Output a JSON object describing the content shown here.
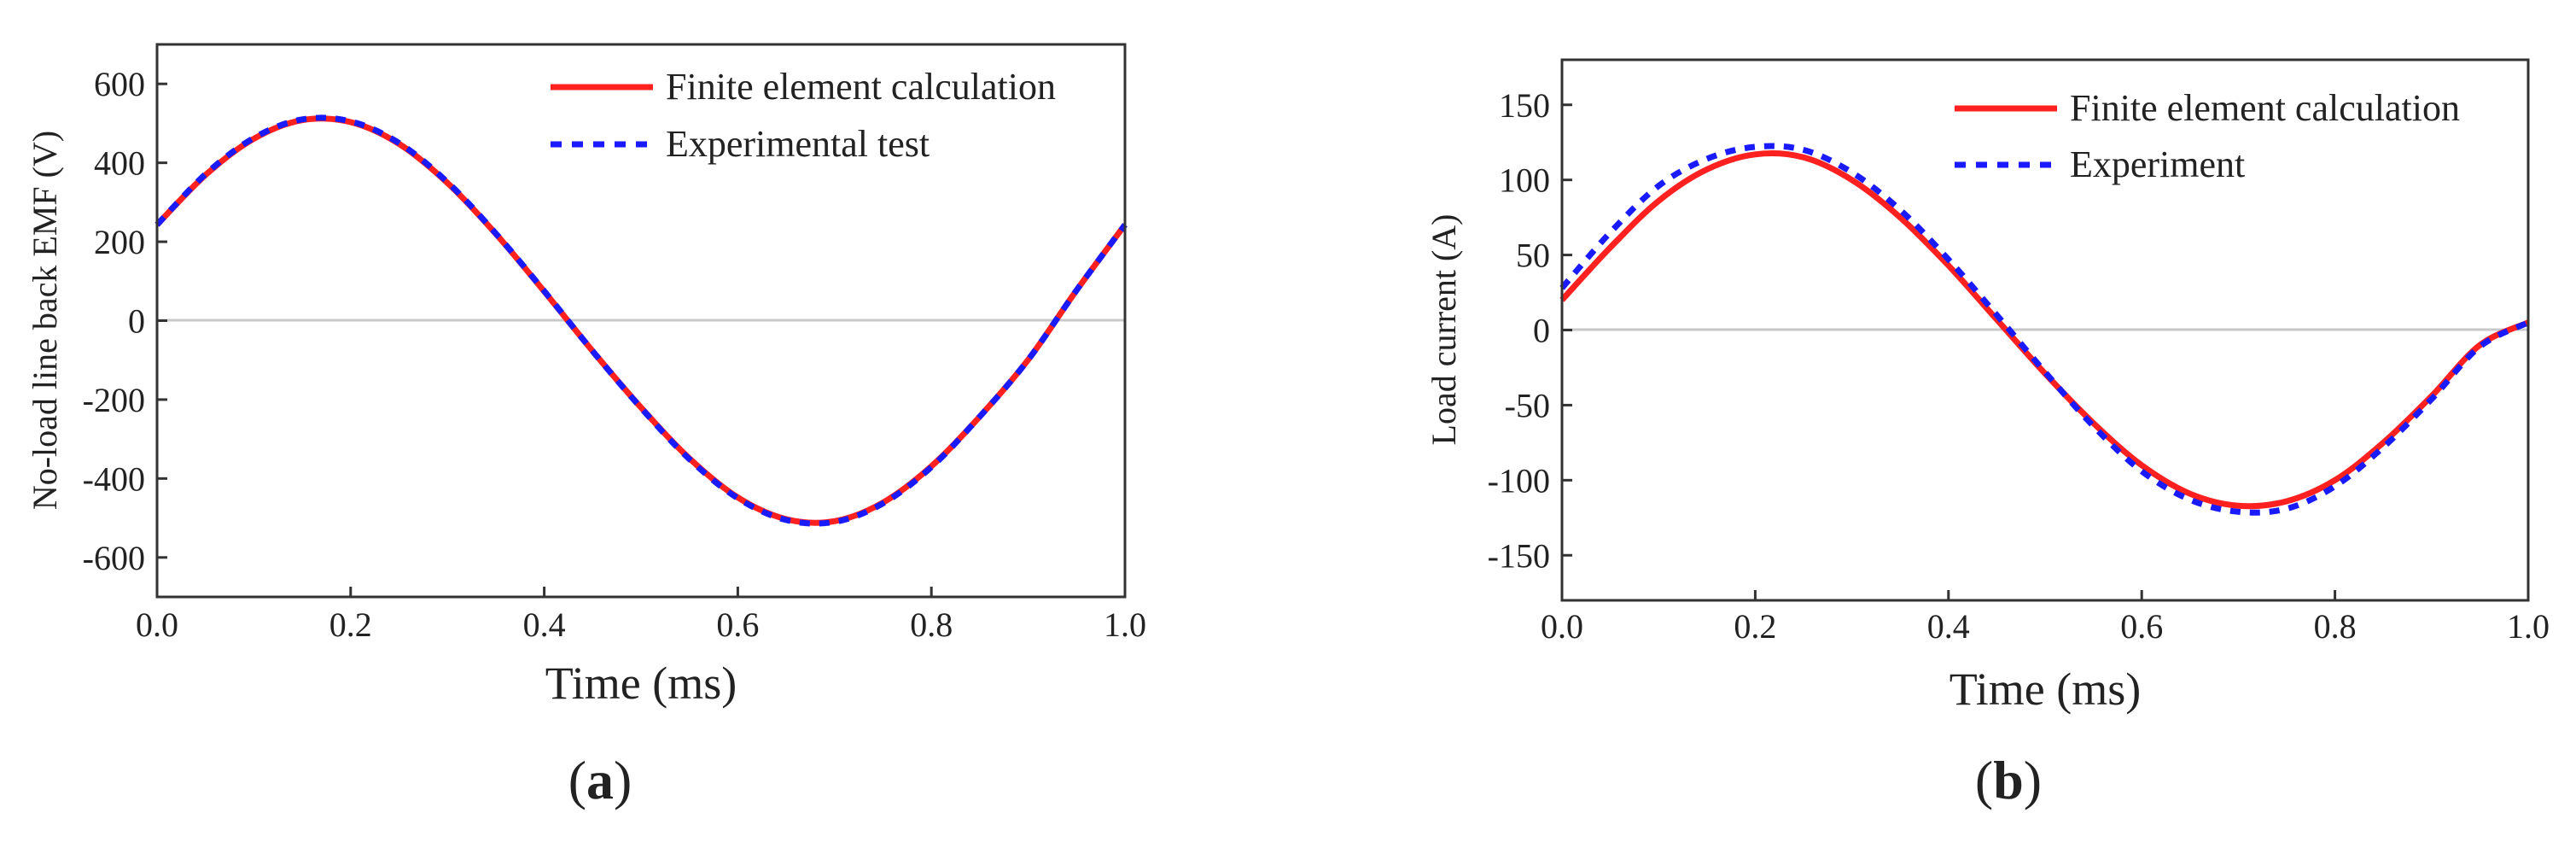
{
  "chart_data": [
    {
      "panel": "a",
      "type": "line",
      "xlabel": "Time (ms)",
      "ylabel": "No-load line back EMF (V)",
      "xlim": [
        0,
        1
      ],
      "ylim": [
        -700,
        700
      ],
      "x_ticks": [
        "0.0",
        "0.2",
        "0.4",
        "0.6",
        "0.8",
        "1.0"
      ],
      "y_ticks": [
        "600",
        "400",
        "200",
        "0",
        "-200",
        "-400",
        "-600"
      ],
      "grid": false,
      "zero_line": true,
      "legend_position": "top-right",
      "x": [
        0,
        0.05,
        0.1,
        0.15,
        0.2,
        0.25,
        0.3,
        0.35,
        0.4,
        0.45,
        0.5,
        0.55,
        0.6,
        0.65,
        0.7,
        0.75,
        0.8,
        0.85,
        0.9,
        0.95,
        1.0
      ],
      "series": [
        {
          "name": "Finite element calculation",
          "color": "#ff2020",
          "style": "solid",
          "values": [
            243,
            369,
            461,
            508,
            503,
            448,
            349,
            220,
            74,
            -77,
            -220,
            -349,
            -448,
            -503,
            -508,
            -461,
            -369,
            -243,
            -99,
            77,
            243
          ]
        },
        {
          "name": "Experimental test",
          "color": "#1a1aff",
          "style": "dotted",
          "values": [
            243,
            371,
            463,
            510,
            505,
            450,
            351,
            221,
            75,
            -77,
            -221,
            -351,
            -450,
            -505,
            -510,
            -463,
            -371,
            -243,
            -99,
            77,
            243
          ]
        }
      ]
    },
    {
      "panel": "b",
      "type": "line",
      "xlabel": "Time (ms)",
      "ylabel": "Load current (A)",
      "xlim": [
        0,
        1
      ],
      "ylim": [
        -180,
        180
      ],
      "x_ticks": [
        "0.0",
        "0.2",
        "0.4",
        "0.6",
        "0.8",
        "1.0"
      ],
      "y_ticks": [
        "150",
        "100",
        "50",
        "0",
        "-50",
        "-100",
        "-150"
      ],
      "grid": false,
      "zero_line": true,
      "legend_position": "top-right",
      "x": [
        0,
        0.05,
        0.1,
        0.15,
        0.2,
        0.25,
        0.3,
        0.35,
        0.4,
        0.45,
        0.5,
        0.55,
        0.6,
        0.65,
        0.7,
        0.75,
        0.8,
        0.85,
        0.9,
        0.95,
        1.0
      ],
      "series": [
        {
          "name": "Finite element calculation",
          "color": "#ff2020",
          "style": "solid",
          "values": [
            20,
            55,
            86,
            107,
            117,
            115,
            100,
            75,
            43,
            7,
            -29,
            -62,
            -90,
            -109,
            -117,
            -114,
            -100,
            -75,
            -44,
            -10,
            5
          ]
        },
        {
          "name": "Experiment",
          "color": "#1a1aff",
          "style": "dotted",
          "values": [
            28,
            65,
            96,
            114,
            122,
            120,
            105,
            80,
            47,
            10,
            -28,
            -64,
            -94,
            -113,
            -121,
            -119,
            -104,
            -78,
            -46,
            -11,
            5
          ]
        }
      ]
    }
  ],
  "panel_labels": [
    {
      "open": "(",
      "letter": "a",
      "close": ")"
    },
    {
      "open": "(",
      "letter": "b",
      "close": ")"
    }
  ]
}
